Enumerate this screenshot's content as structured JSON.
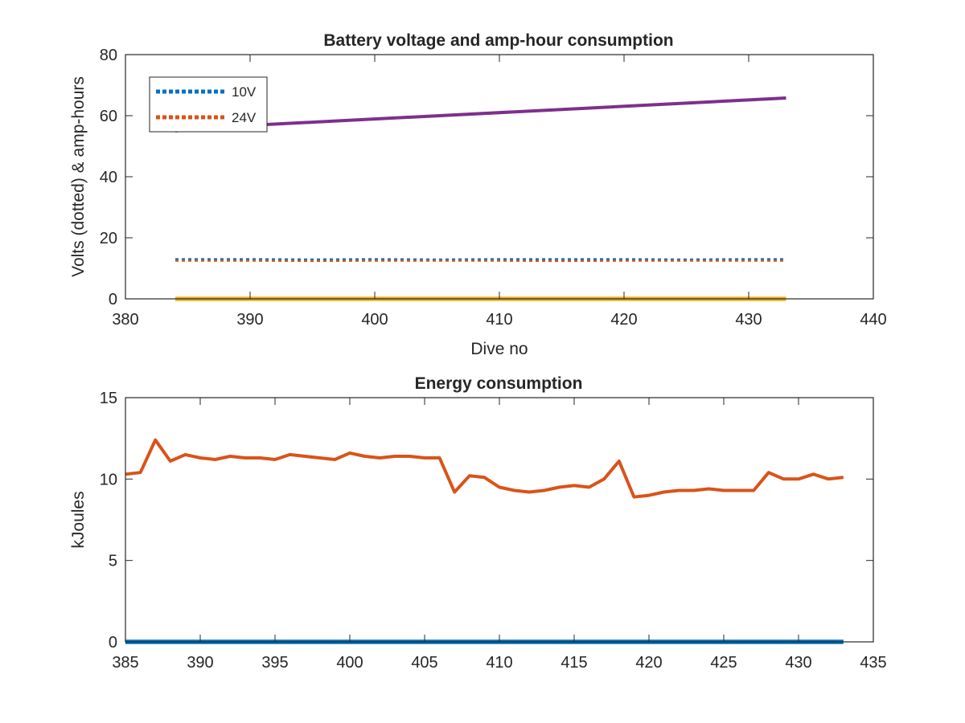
{
  "chart_data": [
    {
      "type": "line",
      "title": "Battery voltage and amp-hour consumption",
      "xlabel": "Dive no",
      "ylabel": "Volts (dotted) & amp-hours",
      "xlim": [
        380,
        440
      ],
      "ylim": [
        0,
        80
      ],
      "xticks": [
        380,
        390,
        400,
        410,
        420,
        430,
        440
      ],
      "yticks": [
        0,
        20,
        40,
        60,
        80
      ],
      "grid": false,
      "legend": {
        "placement": "top-left",
        "entries": [
          "10V",
          "24V"
        ]
      },
      "series": [
        {
          "name": "10V",
          "style": "dotted",
          "color": "#0072BD",
          "x": [
            384,
            390,
            395,
            400,
            405,
            410,
            415,
            420,
            425,
            430,
            433
          ],
          "y": [
            13.0,
            13.0,
            12.9,
            13.0,
            12.9,
            13.0,
            13.0,
            13.0,
            12.9,
            13.0,
            13.0
          ]
        },
        {
          "name": "24V",
          "style": "dotted",
          "color": "#D95319",
          "x": [
            384,
            390,
            395,
            400,
            405,
            410,
            415,
            420,
            425,
            430,
            433
          ],
          "y": [
            12.5,
            12.5,
            12.4,
            12.5,
            12.5,
            12.5,
            12.4,
            12.5,
            12.5,
            12.5,
            12.5
          ]
        },
        {
          "style": "solid",
          "color": "#7E2F8E",
          "x": [
            384,
            386,
            433
          ],
          "y": [
            55.0,
            56.0,
            65.8
          ]
        },
        {
          "style": "solid",
          "color": "#EDB120",
          "x": [
            384,
            433
          ],
          "y": [
            0,
            0
          ]
        }
      ]
    },
    {
      "type": "line",
      "title": "Energy consumption",
      "xlabel": "",
      "ylabel": "kJoules",
      "xlim": [
        385,
        435
      ],
      "ylim": [
        0,
        15
      ],
      "xticks": [
        385,
        390,
        395,
        400,
        405,
        410,
        415,
        420,
        425,
        430,
        435
      ],
      "yticks": [
        0,
        5,
        10,
        15
      ],
      "grid": false,
      "series": [
        {
          "style": "solid",
          "color": "#D95319",
          "x": [
            385,
            386,
            387,
            388,
            389,
            390,
            391,
            392,
            393,
            394,
            395,
            396,
            397,
            398,
            399,
            400,
            401,
            402,
            403,
            404,
            405,
            406,
            407,
            408,
            409,
            410,
            411,
            412,
            413,
            414,
            415,
            416,
            417,
            418,
            419,
            420,
            421,
            422,
            423,
            424,
            425,
            426,
            427,
            428,
            429,
            430,
            431,
            432,
            433
          ],
          "y": [
            10.3,
            10.4,
            12.4,
            11.1,
            11.5,
            11.3,
            11.2,
            11.4,
            11.3,
            11.3,
            11.2,
            11.5,
            11.4,
            11.3,
            11.2,
            11.6,
            11.4,
            11.3,
            11.4,
            11.4,
            11.3,
            11.3,
            9.2,
            10.2,
            10.1,
            9.5,
            9.3,
            9.2,
            9.3,
            9.5,
            9.6,
            9.5,
            10.0,
            11.1,
            8.9,
            9.0,
            9.2,
            9.3,
            9.3,
            9.4,
            9.3,
            9.3,
            9.3,
            10.4,
            10.0,
            10.0,
            10.3,
            10.0,
            10.1
          ]
        },
        {
          "style": "solid",
          "color": "#0072BD",
          "x": [
            385,
            433
          ],
          "y": [
            0,
            0
          ]
        }
      ]
    }
  ]
}
